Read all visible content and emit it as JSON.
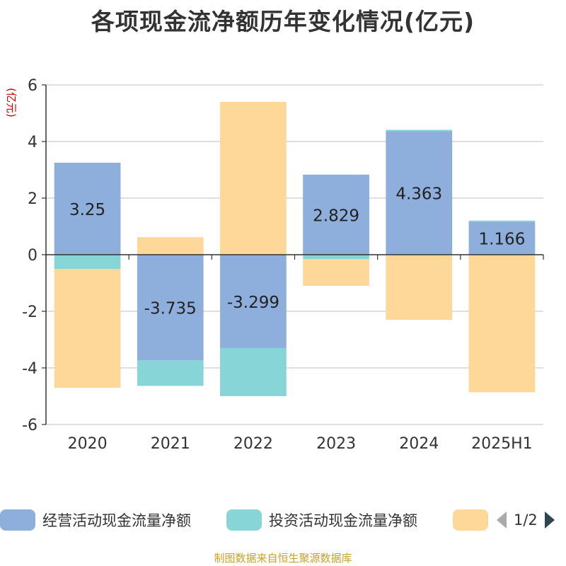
{
  "title": "各项现金流净额历年变化情况(亿元)",
  "source": "制图数据来自恒生聚源数据库",
  "legend_pager": "1/2",
  "colors": {
    "operating": "#8eaedb",
    "investing": "#88d5d8",
    "financing": "#fed898",
    "grid": "#cccccc",
    "axis": "#333333",
    "unit": "#cc0000",
    "source": "#c9a227",
    "pager_prev": "#aaaaaa",
    "pager_next": "#2f4554"
  },
  "chart_data": {
    "type": "bar",
    "stacked": true,
    "title": "各项现金流净额历年变化情况(亿元)",
    "ylabel": "(亿元)",
    "xlabel": "",
    "ylim": [
      -6,
      6
    ],
    "yticks": [
      -6,
      -4,
      -2,
      0,
      2,
      4,
      6
    ],
    "grid": true,
    "legend_position": "bottom",
    "categories": [
      "2020",
      "2021",
      "2022",
      "2023",
      "2024",
      "2025H1"
    ],
    "series": [
      {
        "name": "经营活动现金流量净额",
        "color": "#8eaedb",
        "values": [
          3.25,
          -3.735,
          -3.299,
          2.829,
          4.363,
          1.166
        ],
        "labels": [
          "3.25",
          "-3.735",
          "-3.299",
          "2.829",
          "4.363",
          "1.166"
        ]
      },
      {
        "name": "投资活动现金流量净额",
        "color": "#88d5d8",
        "values": [
          -0.5,
          -0.9,
          -1.7,
          -0.15,
          0.05,
          0.04
        ]
      },
      {
        "name": "",
        "color": "#fed898",
        "values": [
          -4.2,
          0.62,
          5.4,
          -0.95,
          -2.3,
          -4.86
        ]
      }
    ]
  }
}
